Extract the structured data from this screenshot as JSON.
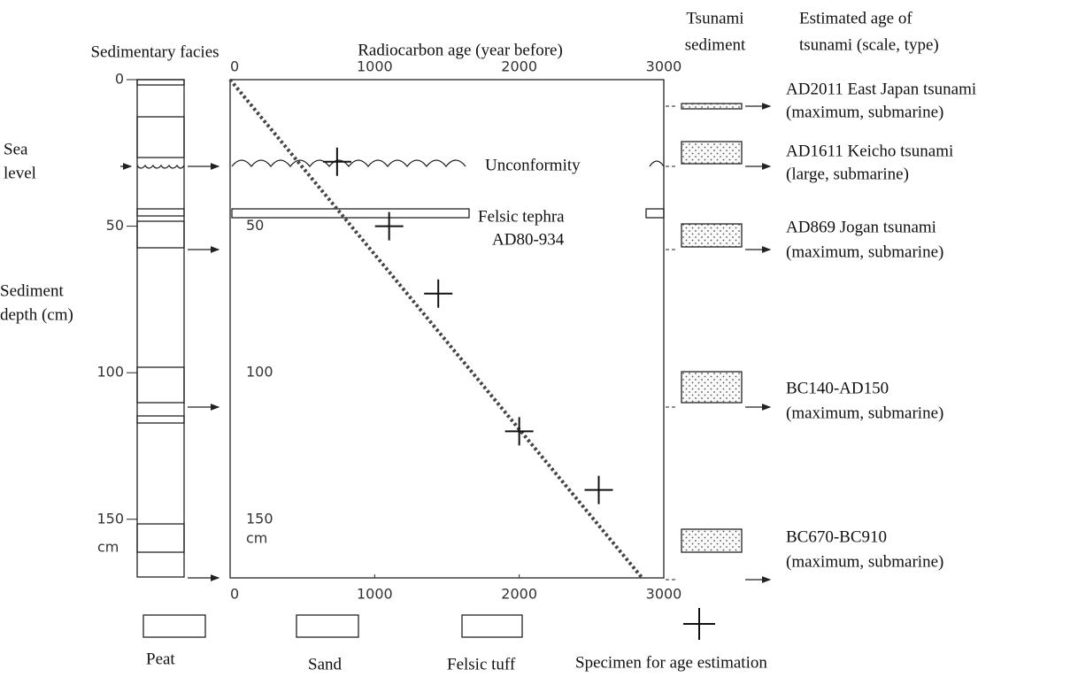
{
  "chart_data": {
    "type": "scatter",
    "x_label": "Radiocarbon age (year before)",
    "y_label": [
      "Sediment",
      "depth (cm)"
    ],
    "y_unit": "cm",
    "xlim": [
      0,
      3000
    ],
    "xticks": [
      0,
      1000,
      2000,
      3000
    ],
    "ylim": [
      0,
      170
    ],
    "yticks": [
      0,
      50,
      100,
      150
    ],
    "series": [
      {
        "name": "Specimen for age estimation",
        "color": "#111111",
        "x": [
          740,
          1100,
          1440,
          2000,
          2550
        ],
        "values": [
          28,
          50,
          73,
          120,
          140
        ]
      }
    ],
    "fit_line": {
      "color": "#444444",
      "x": [
        0,
        2850
      ],
      "values": [
        0,
        170
      ]
    },
    "annotations": {
      "sea_level": [
        "Sea",
        "level"
      ],
      "unconformity": "Unconformity",
      "tephra": [
        "Felsic tephra",
        "AD80-934"
      ]
    },
    "facies_title": "Sedimentary facies",
    "facies_legend": [
      "Peat",
      "Sand",
      "Felsic tuff"
    ],
    "sediment_title": [
      "Tsunami",
      "sediment"
    ],
    "events_title": [
      "Estimated age of",
      "tsunami (scale, type)"
    ],
    "events": [
      {
        "name": "AD2011 East Japan tsunami",
        "detail": "(maximum, submarine)"
      },
      {
        "name": "AD1611 Keicho tsunami",
        "detail": "(large, submarine)"
      },
      {
        "name": "AD869 Jogan tsunami",
        "detail": "(maximum, submarine)"
      },
      {
        "name": "BC140-AD150",
        "detail": "(maximum, submarine)"
      },
      {
        "name": "BC670-BC910",
        "detail": "(maximum, submarine)"
      }
    ]
  }
}
